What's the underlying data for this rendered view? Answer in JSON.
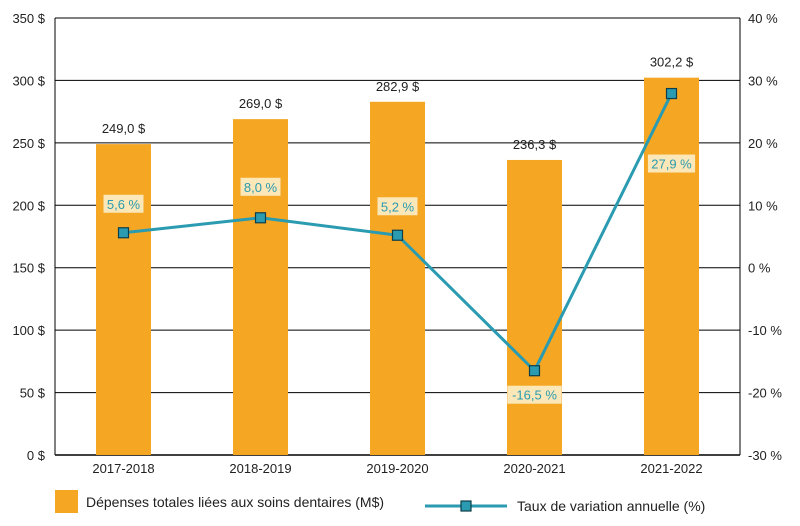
{
  "colors": {
    "bar": "#F5A623",
    "line": "#2A9BB0",
    "marker_fill": "#2A9BB0",
    "marker_stroke": "#0D3E4A",
    "label_bg": "#FBE7B8",
    "label_text": "#2A9BB0",
    "grid": "#000000"
  },
  "chart_data": {
    "type": "bar",
    "categories": [
      "2017-2018",
      "2018-2019",
      "2019-2020",
      "2020-2021",
      "2021-2022"
    ],
    "series": [
      {
        "name": "Dépenses totales liées aux soins dentaires (M$)",
        "type": "bar",
        "axis": "left",
        "values": [
          249.0,
          269.0,
          282.9,
          236.3,
          302.2
        ],
        "labels": [
          "249,0 $",
          "269,0 $",
          "282,9 $",
          "236,3 $",
          "302,2 $"
        ]
      },
      {
        "name": "Taux de variation annuelle (%)",
        "type": "line",
        "axis": "right",
        "values": [
          5.6,
          8.0,
          5.2,
          -16.5,
          27.9
        ],
        "labels": [
          "5,6 %",
          "8,0 %",
          "5,2 %",
          "-16,5 %",
          "27,9 %"
        ]
      }
    ],
    "y_left": {
      "range": [
        0,
        350
      ],
      "ticks": [
        0,
        50,
        100,
        150,
        200,
        250,
        300,
        350
      ],
      "tick_labels": [
        "0 $",
        "50 $",
        "100 $",
        "150 $",
        "200 $",
        "250 $",
        "300 $",
        "350 $"
      ]
    },
    "y_right": {
      "range": [
        -30,
        40
      ],
      "ticks": [
        -30,
        -20,
        -10,
        0,
        10,
        20,
        30,
        40
      ],
      "tick_labels": [
        "-30 %",
        "-20 %",
        "-10 %",
        "0 %",
        "10 %",
        "20 %",
        "30 %",
        "40 %"
      ]
    },
    "grid": true,
    "legend_position": "bottom"
  }
}
